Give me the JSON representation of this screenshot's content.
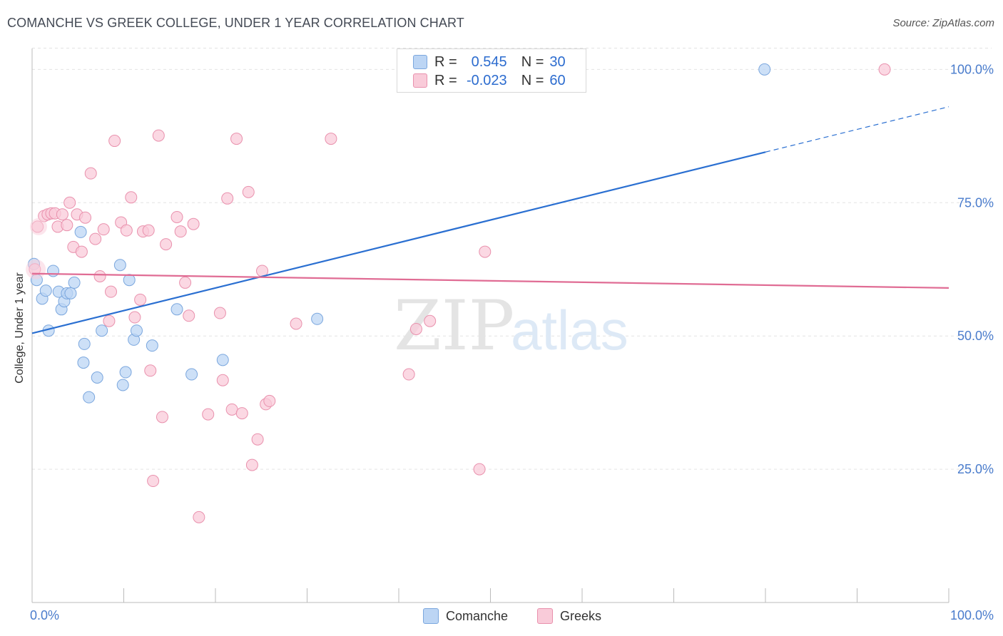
{
  "header": {
    "title": "COMANCHE VS GREEK COLLEGE, UNDER 1 YEAR CORRELATION CHART",
    "source": "Source: ZipAtlas.com"
  },
  "legend": {
    "r_label": "R =",
    "n_label": "N =",
    "items": [
      {
        "name": "Comanche",
        "r": "0.545",
        "n": "30"
      },
      {
        "name": "Greeks",
        "r": "-0.023",
        "n": "60"
      }
    ]
  },
  "watermark": {
    "zip": "ZIP",
    "atlas": "atlas"
  },
  "colors": {
    "blue_fill": "#bcd5f4",
    "blue_stroke": "#7ba7de",
    "blue_line": "#2a6fd1",
    "pink_fill": "#f9cbd9",
    "pink_stroke": "#e991ad",
    "pink_line": "#e06c94",
    "axis_text": "#4a7ccc",
    "grid": "#e3e3e3"
  },
  "chart_data": {
    "type": "scatter",
    "title": "COMANCHE VS GREEK COLLEGE, UNDER 1 YEAR CORRELATION CHART",
    "xlabel": "",
    "ylabel": "College, Under 1 year",
    "xlim": [
      0,
      100
    ],
    "ylim": [
      0,
      105
    ],
    "x_tick_labels": [
      "0.0%",
      "100.0%"
    ],
    "y_ticks": [
      25,
      50,
      75,
      100
    ],
    "y_tick_labels": [
      "25.0%",
      "50.0%",
      "75.0%",
      "100.0%"
    ],
    "series": [
      {
        "name": "Comanche",
        "r": 0.545,
        "n": 30,
        "trend": {
          "start": [
            0,
            50.5
          ],
          "end": [
            80,
            84.5
          ],
          "dashed_to": [
            100,
            93.0
          ]
        },
        "points": [
          [
            0.2,
            63.5
          ],
          [
            0.5,
            60.5
          ],
          [
            1.1,
            57.0
          ],
          [
            1.5,
            58.5
          ],
          [
            1.8,
            51.0
          ],
          [
            2.3,
            62.2
          ],
          [
            2.9,
            58.3
          ],
          [
            3.2,
            55.0
          ],
          [
            3.5,
            56.5
          ],
          [
            3.8,
            58.0
          ],
          [
            4.2,
            58.0
          ],
          [
            4.6,
            60.0
          ],
          [
            5.3,
            69.5
          ],
          [
            5.7,
            48.5
          ],
          [
            5.6,
            45.0
          ],
          [
            6.2,
            38.5
          ],
          [
            7.1,
            42.2
          ],
          [
            7.6,
            51.0
          ],
          [
            9.6,
            63.3
          ],
          [
            9.9,
            40.8
          ],
          [
            10.2,
            43.2
          ],
          [
            10.6,
            60.5
          ],
          [
            11.1,
            49.3
          ],
          [
            11.4,
            51.0
          ],
          [
            13.1,
            48.2
          ],
          [
            15.8,
            55.0
          ],
          [
            17.4,
            42.8
          ],
          [
            20.8,
            45.5
          ],
          [
            31.1,
            53.2
          ],
          [
            79.9,
            100.0
          ]
        ]
      },
      {
        "name": "Greeks",
        "r": -0.023,
        "n": 60,
        "trend": {
          "start": [
            0,
            61.7
          ],
          "end": [
            100,
            59.0
          ]
        },
        "points": [
          [
            0.3,
            62.5
          ],
          [
            0.6,
            70.5
          ],
          [
            1.3,
            72.5
          ],
          [
            1.7,
            72.8
          ],
          [
            2.1,
            73.0
          ],
          [
            2.5,
            73.0
          ],
          [
            2.8,
            70.5
          ],
          [
            3.3,
            72.8
          ],
          [
            3.8,
            70.8
          ],
          [
            4.1,
            75.0
          ],
          [
            4.5,
            66.7
          ],
          [
            4.9,
            72.8
          ],
          [
            5.4,
            65.8
          ],
          [
            5.8,
            72.2
          ],
          [
            6.4,
            80.5
          ],
          [
            6.9,
            68.2
          ],
          [
            7.4,
            61.2
          ],
          [
            7.8,
            70.0
          ],
          [
            8.4,
            52.8
          ],
          [
            8.6,
            58.3
          ],
          [
            9.0,
            86.6
          ],
          [
            9.7,
            71.3
          ],
          [
            10.3,
            69.8
          ],
          [
            10.8,
            76.0
          ],
          [
            11.2,
            53.5
          ],
          [
            11.8,
            56.8
          ],
          [
            12.1,
            69.6
          ],
          [
            12.7,
            69.8
          ],
          [
            12.9,
            43.5
          ],
          [
            13.2,
            22.8
          ],
          [
            13.8,
            87.6
          ],
          [
            14.2,
            34.8
          ],
          [
            14.6,
            67.2
          ],
          [
            15.8,
            72.3
          ],
          [
            16.2,
            69.6
          ],
          [
            16.7,
            60.0
          ],
          [
            17.1,
            53.8
          ],
          [
            17.6,
            71.0
          ],
          [
            18.2,
            16.0
          ],
          [
            19.2,
            35.3
          ],
          [
            20.5,
            54.3
          ],
          [
            20.8,
            41.7
          ],
          [
            21.3,
            75.8
          ],
          [
            21.8,
            36.2
          ],
          [
            22.3,
            87.0
          ],
          [
            22.9,
            35.5
          ],
          [
            23.6,
            77.0
          ],
          [
            24.0,
            25.8
          ],
          [
            24.6,
            30.6
          ],
          [
            25.1,
            62.2
          ],
          [
            25.5,
            37.2
          ],
          [
            25.9,
            37.8
          ],
          [
            28.8,
            52.3
          ],
          [
            32.6,
            87.0
          ],
          [
            41.1,
            42.8
          ],
          [
            41.9,
            51.3
          ],
          [
            43.4,
            52.8
          ],
          [
            48.8,
            25.0
          ],
          [
            49.4,
            65.8
          ],
          [
            93.0,
            100.0
          ]
        ]
      }
    ]
  }
}
